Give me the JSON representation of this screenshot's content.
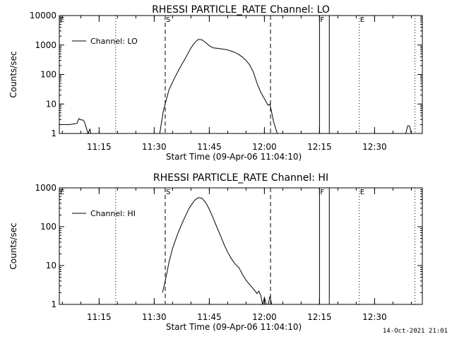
{
  "timestamp": "14-Oct-2021 21:01",
  "chart_data": [
    {
      "type": "line",
      "title": "RHESSI PARTICLE_RATE Channel: LO",
      "ylabel": "Counts/sec",
      "xlabel": "Start Time (09-Apr-06 11:04:10)",
      "yscale": "log",
      "ylim": [
        1,
        10000
      ],
      "xlim": [
        "11:04:10",
        "12:43:00"
      ],
      "y_ticks": [
        1,
        10,
        100,
        1000,
        10000
      ],
      "y_tick_labels": [
        "1",
        "10",
        "100",
        "1000",
        "10000"
      ],
      "x_ticks": [
        "11:15",
        "11:30",
        "11:45",
        "12:00",
        "12:15",
        "12:30"
      ],
      "legend": "Channel: LO",
      "legend_position": "top-left",
      "markers": [
        {
          "label": "E",
          "time": "11:04:10",
          "style": "dotted"
        },
        {
          "label": "",
          "time": "11:19:30",
          "style": "dotted"
        },
        {
          "label": "S",
          "time": "11:33:00",
          "style": "dashed"
        },
        {
          "label": "",
          "time": "12:01:40",
          "style": "dashed"
        },
        {
          "label": "F",
          "time": "12:15:00",
          "style": "solid"
        },
        {
          "label": "",
          "time": "12:17:40",
          "style": "solid"
        },
        {
          "label": "E",
          "time": "12:25:50",
          "style": "dotted"
        },
        {
          "label": "",
          "time": "12:41:00",
          "style": "dotted"
        }
      ],
      "series": [
        {
          "x": [
            "11:04:10",
            "11:05:00",
            "11:07:00",
            "11:08:00",
            "11:09:00",
            "11:09:30",
            "11:10:00",
            "11:10:30",
            "11:11:00",
            "11:12:00",
            "11:12:30",
            "11:12:45"
          ],
          "y": [
            2.0,
            2.0,
            2.0,
            2.1,
            2.2,
            3.2,
            2.9,
            2.9,
            2.5,
            1.0,
            1.4,
            1.0
          ]
        },
        {
          "x": [
            "11:31:30",
            "11:32:30",
            "11:34:00",
            "11:35:30",
            "11:37:00",
            "11:38:30",
            "11:40:00",
            "11:41:00",
            "11:42:00",
            "11:43:00",
            "11:44:00",
            "11:45:00",
            "11:46:00",
            "11:47:00",
            "11:48:00",
            "11:49:00",
            "11:50:00",
            "11:51:00",
            "11:52:00",
            "11:53:00",
            "11:54:00",
            "11:55:00",
            "11:56:00",
            "11:57:00",
            "11:58:00",
            "11:59:00",
            "12:00:00",
            "12:01:00",
            "12:01:30",
            "12:02:30",
            "12:03:30"
          ],
          "y": [
            1.0,
            6,
            30,
            75,
            170,
            360,
            800,
            1200,
            1550,
            1500,
            1200,
            950,
            800,
            780,
            750,
            720,
            680,
            620,
            560,
            480,
            390,
            300,
            210,
            120,
            50,
            25,
            15,
            9,
            10,
            2.5,
            1.0
          ]
        },
        {
          "x": [
            "12:38:30",
            "12:39:00",
            "12:39:30",
            "12:40:00"
          ],
          "y": [
            1.0,
            1.8,
            1.8,
            1.0
          ]
        }
      ]
    },
    {
      "type": "line",
      "title": "RHESSI PARTICLE_RATE Channel: HI",
      "ylabel": "Counts/sec",
      "xlabel": "Start Time (09-Apr-06 11:04:10)",
      "yscale": "log",
      "ylim": [
        1,
        1000
      ],
      "xlim": [
        "11:04:10",
        "12:43:00"
      ],
      "y_ticks": [
        1,
        10,
        100,
        1000
      ],
      "y_tick_labels": [
        "1",
        "10",
        "100",
        "1000"
      ],
      "x_ticks": [
        "11:15",
        "11:30",
        "11:45",
        "12:00",
        "12:15",
        "12:30"
      ],
      "legend": "Channel: HI",
      "legend_position": "top-left",
      "markers": [
        {
          "label": "E",
          "time": "11:04:10",
          "style": "dotted"
        },
        {
          "label": "",
          "time": "11:19:30",
          "style": "dotted"
        },
        {
          "label": "S",
          "time": "11:33:00",
          "style": "dashed"
        },
        {
          "label": "",
          "time": "12:01:40",
          "style": "dashed"
        },
        {
          "label": "F",
          "time": "12:15:00",
          "style": "solid"
        },
        {
          "label": "",
          "time": "12:17:40",
          "style": "solid"
        },
        {
          "label": "E",
          "time": "12:25:50",
          "style": "dotted"
        },
        {
          "label": "",
          "time": "12:41:00",
          "style": "dotted"
        }
      ],
      "series": [
        {
          "x": [
            "11:32:15",
            "11:33:00",
            "11:34:00",
            "11:35:00",
            "11:36:30",
            "11:38:00",
            "11:39:30",
            "11:41:00",
            "11:42:00",
            "11:43:00",
            "11:44:00",
            "11:45:00",
            "11:46:00",
            "11:47:00",
            "11:48:00",
            "11:49:00",
            "11:50:00",
            "11:51:00",
            "11:52:00",
            "11:53:00",
            "11:54:00",
            "11:55:00",
            "11:56:00",
            "11:57:00",
            "11:58:00",
            "11:58:30",
            "11:59:00",
            "11:59:30",
            "12:00:00",
            "12:00:30",
            "12:01:00",
            "12:01:30",
            "12:02:00"
          ],
          "y": [
            2.0,
            4,
            12,
            28,
            70,
            150,
            300,
            480,
            560,
            540,
            420,
            280,
            170,
            100,
            60,
            35,
            22,
            15,
            11,
            9,
            6,
            4.2,
            3.2,
            2.5,
            1.9,
            2.2,
            1.7,
            1.0,
            1.5,
            1.0,
            1.0,
            1.6,
            1.0
          ]
        }
      ]
    }
  ]
}
